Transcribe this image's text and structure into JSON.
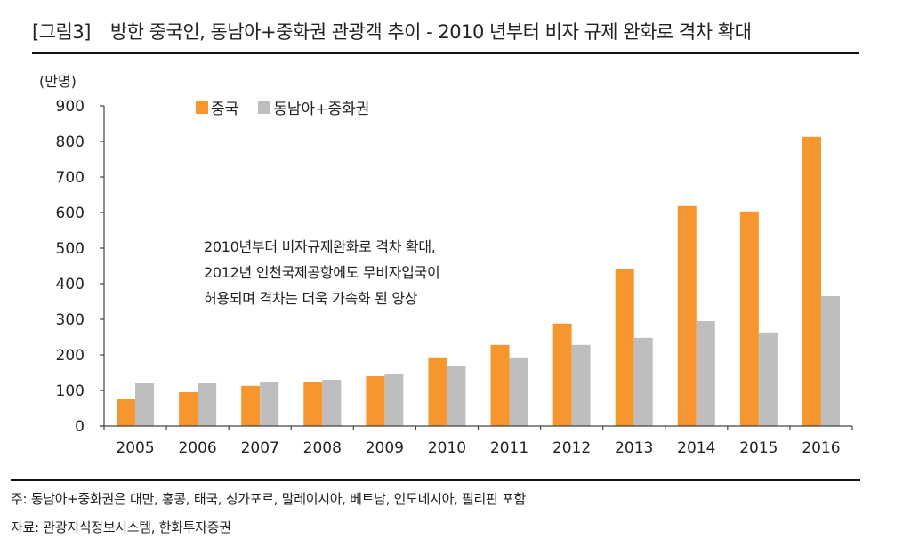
{
  "figure": {
    "label": "[그림3]",
    "title": "방한 중국인, 동남아+중화권 관광객 추이 - 2010 년부터 비자 규제 완화로 격차 확대"
  },
  "notes": {
    "note": "주: 동남아+중화권은 대만, 홍콩, 태국, 싱가포르, 말레이시아, 베트남, 인도네시아, 필리핀 포함",
    "source": "자료: 관광지식정보시스템, 한화투자증권"
  },
  "chart_data": {
    "type": "bar",
    "title": "방한 중국인, 동남아+중화권 관광객 추이 - 2010 년부터 비자 규제 완화로 격차 확대",
    "xlabel": "",
    "ylabel": "(만명)",
    "ylim": [
      0,
      900
    ],
    "yticks": [
      "0",
      "100",
      "200",
      "300",
      "400",
      "500",
      "600",
      "700",
      "800",
      "900"
    ],
    "ytick_values": [
      0,
      100,
      200,
      300,
      400,
      500,
      600,
      700,
      800,
      900
    ],
    "grid": false,
    "legend_position": "top-left",
    "categories": [
      "2005",
      "2006",
      "2007",
      "2008",
      "2009",
      "2010",
      "2011",
      "2012",
      "2013",
      "2014",
      "2015",
      "2016"
    ],
    "series": [
      {
        "name": "중국",
        "color": "#F7962F",
        "values": [
          75,
          95,
          113,
          123,
          140,
          193,
          228,
          288,
          440,
          618,
          603,
          813
        ]
      },
      {
        "name": "동남아+중화권",
        "color": "#BEBEBE",
        "values": [
          120,
          120,
          125,
          130,
          145,
          168,
          193,
          228,
          248,
          295,
          263,
          365
        ]
      }
    ],
    "annotation": [
      "2010년부터 비자규제완화로 격차 확대,",
      "2012년 인천국제공항에도 무비자입국이",
      "허용되며 격차는 더욱 가속화 된 양상"
    ]
  }
}
